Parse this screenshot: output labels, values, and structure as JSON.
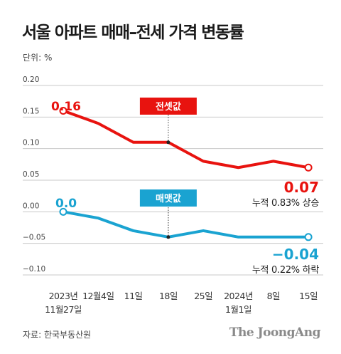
{
  "title": "서울 아파트 매매–전세 가격 변동률",
  "unit_label": "단위: %",
  "source": "자료: 한국부동산원",
  "brand": "The JoongAng",
  "colors": {
    "jeonse": "#e8130f",
    "sale": "#1aa3d1",
    "grid": "#c8c8c8",
    "text": "#444444"
  },
  "chart_data": {
    "type": "line",
    "categories": [
      [
        "2023년",
        "11월27일"
      ],
      [
        "12월4일"
      ],
      [
        "11일"
      ],
      [
        "18일"
      ],
      [
        "25일"
      ],
      [
        "2024년",
        "1월1일"
      ],
      [
        "8일"
      ],
      [
        "15일"
      ]
    ],
    "ylim": [
      -0.1,
      0.2
    ],
    "yticks": [
      "0.20",
      "0.15",
      "0.10",
      "0.05",
      "0.00",
      "−0.05",
      "−0.10"
    ],
    "ytick_values": [
      0.2,
      0.15,
      0.1,
      0.05,
      0.0,
      -0.05,
      -0.1
    ],
    "grid": true,
    "series": [
      {
        "name": "전셋값",
        "values": [
          0.16,
          0.14,
          0.11,
          0.11,
          0.08,
          0.07,
          0.08,
          0.07
        ],
        "start_label": "0.16",
        "end_label": "0.07",
        "note": "누적 0.83% 상승"
      },
      {
        "name": "매맷값",
        "values": [
          0.0,
          -0.01,
          -0.03,
          -0.04,
          -0.03,
          -0.04,
          -0.04,
          -0.04
        ],
        "start_label": "0.0",
        "end_label": "−0.04",
        "note": "누적 0.22% 하락"
      }
    ]
  }
}
